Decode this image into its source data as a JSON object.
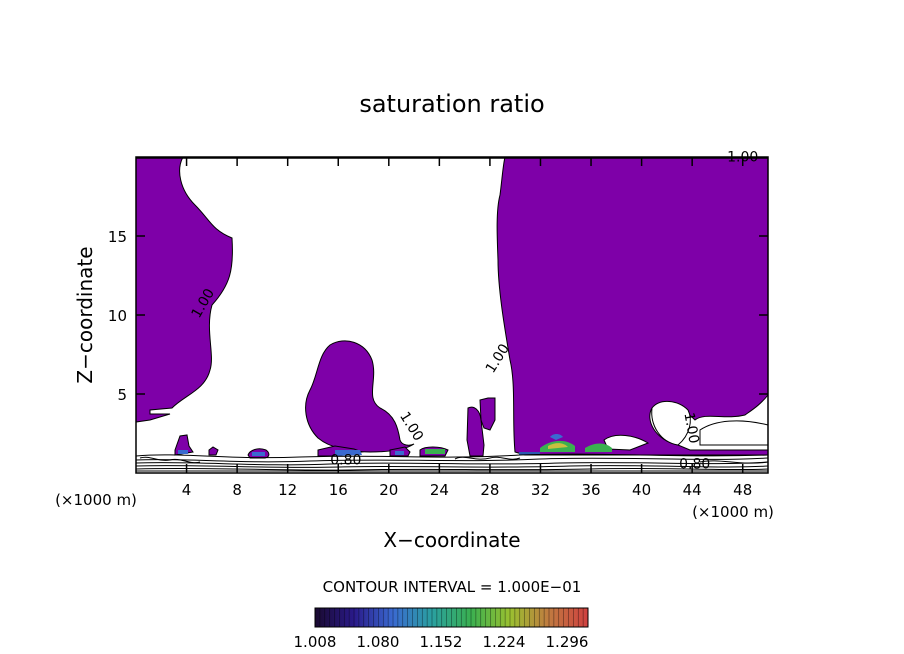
{
  "chart_data": {
    "type": "contour",
    "title": "saturation ratio",
    "xlabel": "X−coordinate",
    "ylabel": "Z−coordinate",
    "x_units_left": "(×1000 m)",
    "x_units_right": "(×1000 m)",
    "xlim": [
      0,
      50
    ],
    "ylim": [
      0,
      20
    ],
    "x_ticks": [
      4,
      8,
      12,
      16,
      20,
      24,
      28,
      32,
      36,
      40,
      44,
      48
    ],
    "y_ticks": [
      5,
      10,
      15
    ],
    "contour_labels": [
      {
        "text": "1.00",
        "x": 5.6,
        "y": 10.6,
        "rotate": -60
      },
      {
        "text": "1.00",
        "x": 28.9,
        "y": 7.1,
        "rotate": -58
      },
      {
        "text": "1.00",
        "x": 21.5,
        "y": 2.8,
        "rotate": 58
      },
      {
        "text": "1.00",
        "x": 43.6,
        "y": 2.8,
        "rotate": 80
      },
      {
        "text": "1.00",
        "x": 48.0,
        "y": 19.7,
        "rotate": 0
      },
      {
        "text": "0.80",
        "x": 16.6,
        "y": 0.55,
        "rotate": 0
      },
      {
        "text": "0.80",
        "x": 44.2,
        "y": 0.3,
        "rotate": 0
      }
    ],
    "contour_interval_text": "CONTOUR INTERVAL = 1.000E−01",
    "colorbar": {
      "min": 1.008,
      "max": 1.32,
      "tick_labels": [
        "1.008",
        "1.080",
        "1.152",
        "1.224",
        "1.296"
      ],
      "colors": [
        "#1a0a30",
        "#2a1a8a",
        "#3a6ad0",
        "#2aa0a0",
        "#3ab050",
        "#9ac030",
        "#c07a40",
        "#d04040"
      ]
    },
    "fill_color": "#7e00a8",
    "supersaturation_color": "#7e00a8"
  }
}
